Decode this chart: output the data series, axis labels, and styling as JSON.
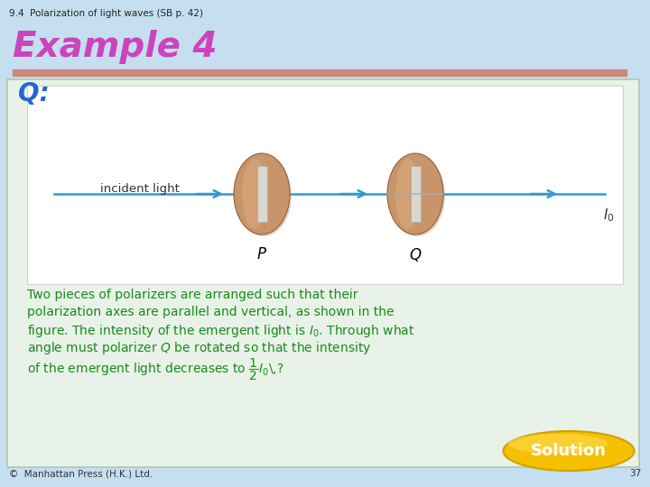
{
  "title_small": "9.4  Polarization of light waves (SB p. 42)",
  "title_large": "Example 4",
  "bg_color": "#c5dff0",
  "inner_box_color": "#e8f2e8",
  "inner_box_border": "#c0d0c0",
  "white_box_color": "#ffffff",
  "red_bar_color": "#cc8878",
  "q_color": "#2266cc",
  "text_color": "#1a8a1a",
  "solution_btn_color": "#f5c000",
  "solution_text": "Solution",
  "footer_text": "©  Manhattan Press (H.K.) Ltd.",
  "page_number": "37",
  "title_color_E": "#e84040",
  "title_color_x": "#e84040",
  "title_color_a": "#40aa40",
  "title_color_m": "#4040e8",
  "title_color_p": "#e84040",
  "title_color_l": "#9040c0",
  "title_color_e2": "#4040e8",
  "title_color_4": "#888888",
  "incident_light_label": "incident light",
  "polarizer_P_label": "P",
  "polarizer_Q_label": "Q",
  "arrow_color": "#3399cc",
  "polarizer_fill": "#c8956a",
  "polarizer_fill2": "#daa87a",
  "polarizer_slot": "#d8d8d0"
}
